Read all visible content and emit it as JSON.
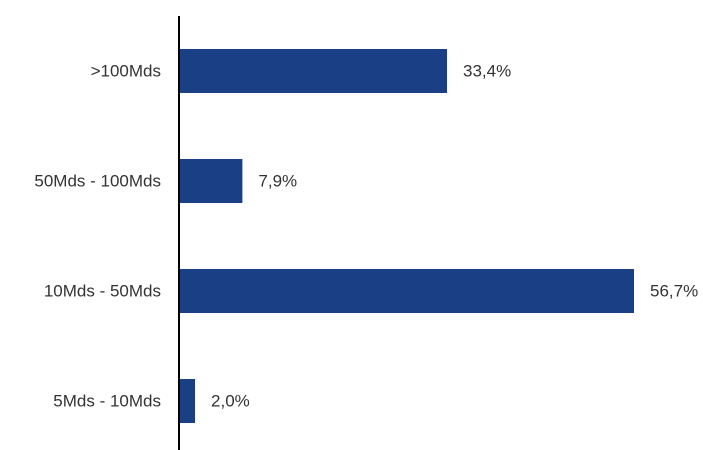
{
  "chart_data": {
    "type": "bar",
    "orientation": "horizontal",
    "categories": [
      ">100Mds",
      "50Mds - 100Mds",
      "10Mds - 50Mds",
      "5Mds - 10Mds"
    ],
    "values": [
      33.4,
      7.9,
      56.7,
      2.0
    ],
    "value_labels": [
      "33,4%",
      "7,9%",
      "56,7%",
      "2,0%"
    ],
    "unit": "%",
    "xlim": [
      0,
      56.7
    ],
    "grid": false,
    "legend": "none",
    "bar_color": "#1a3f84",
    "axis_color": "#000000",
    "text_color": "#333333"
  }
}
